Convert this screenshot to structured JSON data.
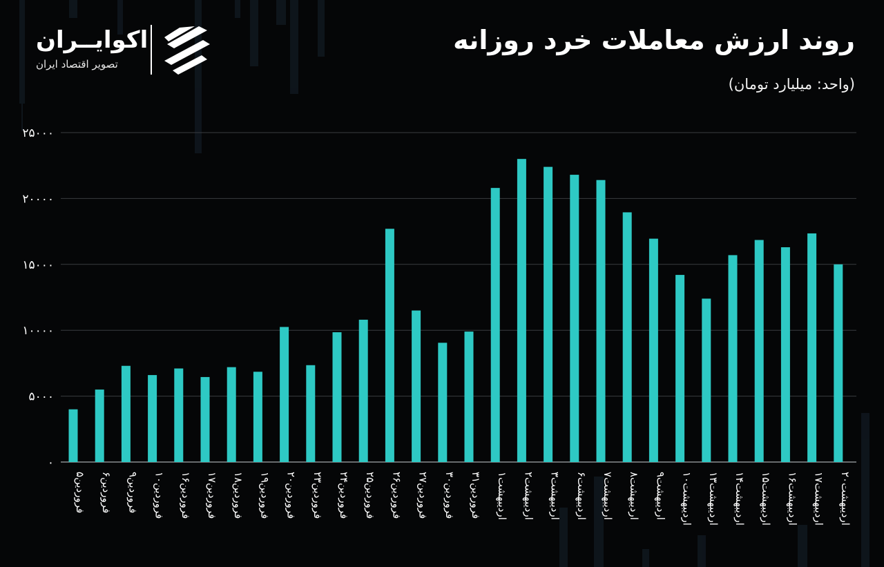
{
  "header": {
    "title": "روند ارزش معاملات خرد روزانه",
    "unit": "(واحد: میلیارد تومان)"
  },
  "brand": {
    "name": "اکوایــران",
    "tagline": "تصویر اقتصاد ایران",
    "logo_icon": "ecoiran-logo-icon"
  },
  "colors": {
    "bar": "#2ec9c4",
    "background": "#050607",
    "grid": "#3a3d40",
    "text": "#ffffff"
  },
  "chart_data": {
    "type": "bar",
    "categories": [
      "فروردین۵",
      "فروردین۶",
      "فروردین۹",
      "فروردین۱۰",
      "فروردین۱۶",
      "فروردین۱۷",
      "فروردین۱۸",
      "فروردین۱۹",
      "فروردین۲۰",
      "فروردین۲۳",
      "فروردین۲۴",
      "فروردین۲۵",
      "فروردین۲۶",
      "فروردین۲۷",
      "فروردین۳۰",
      "فروردین۳۱",
      "اردیبهشت۱",
      "اردیبهشت۲",
      "اردیبهشت۳",
      "اردیبهشت۶",
      "اردیبهشت۷",
      "اردیبهشت۸",
      "اردیبهشت۹",
      "اردیبهشت۱۰",
      "اردیبهشت۱۳",
      "اردیبهشت۱۴",
      "اردیبهشت۱۵",
      "اردیبهشت۱۶",
      "اردیبهشت۱۷",
      "اردیبهشت۲۰"
    ],
    "values": [
      4000,
      5500,
      7300,
      6600,
      7100,
      6450,
      7200,
      6850,
      10250,
      7350,
      9850,
      10800,
      17700,
      11500,
      9050,
      9900,
      20800,
      23000,
      22400,
      21800,
      21400,
      18950,
      16950,
      14200,
      12400,
      15700,
      16850,
      16300,
      17350,
      15000
    ],
    "yticks": [
      "۰",
      "۵۰۰۰",
      "۱۰۰۰۰",
      "۱۵۰۰۰",
      "۲۰۰۰۰",
      "۲۵۰۰۰"
    ],
    "ylim": [
      0,
      25000
    ],
    "grid": true,
    "legend": "none",
    "title": "روند ارزش معاملات خرد روزانه",
    "ylabel": "(واحد: میلیارد تومان)"
  }
}
